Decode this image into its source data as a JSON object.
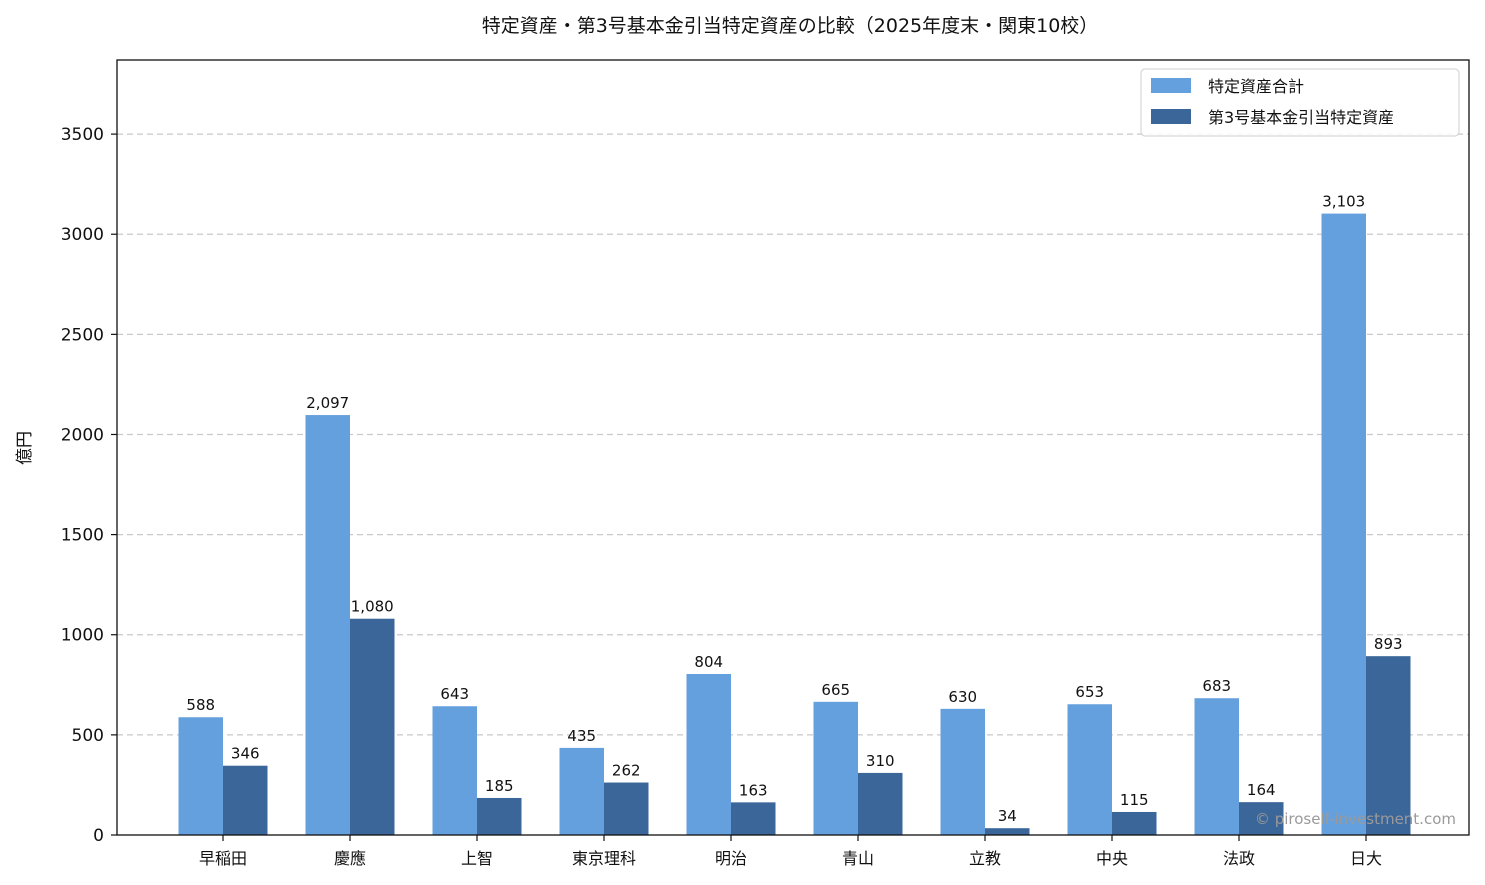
{
  "chart_data": {
    "type": "bar",
    "title": "特定資産・第3号基本金引当特定資産の比較（2025年度末・関東10校）",
    "ylabel": "億円",
    "xlabel": "",
    "categories": [
      "早稲田",
      "慶應",
      "上智",
      "東京理科",
      "明治",
      "青山",
      "立教",
      "中央",
      "法政",
      "日大"
    ],
    "series": [
      {
        "name": "特定資産合計",
        "color": "#64a0de",
        "values": [
          588,
          2097,
          643,
          435,
          804,
          665,
          630,
          653,
          683,
          3103
        ],
        "labels": [
          "588",
          "2,097",
          "643",
          "435",
          "804",
          "665",
          "630",
          "653",
          "683",
          "3,103"
        ]
      },
      {
        "name": "第3号基本金引当特定資産",
        "color": "#3b6699",
        "values": [
          346,
          1080,
          185,
          262,
          163,
          310,
          34,
          115,
          164,
          893
        ],
        "labels": [
          "346",
          "1,080",
          "185",
          "262",
          "163",
          "310",
          "34",
          "115",
          "164",
          "893"
        ]
      }
    ],
    "ylim": [
      0,
      3870
    ],
    "yticks": [
      0,
      500,
      1000,
      1500,
      2000,
      2500,
      3000,
      3500
    ],
    "grid": true,
    "legend": "top-right"
  },
  "watermark": "© piroself-investment.com"
}
